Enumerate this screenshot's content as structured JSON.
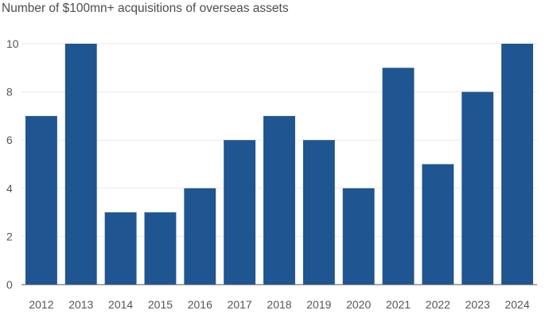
{
  "chart_data": {
    "type": "bar",
    "title": "Number of $100mn+ acquisitions of overseas assets",
    "xlabel": "",
    "ylabel": "",
    "categories": [
      "2012",
      "2013",
      "2014",
      "2015",
      "2016",
      "2017",
      "2018",
      "2019",
      "2020",
      "2021",
      "2022",
      "2023",
      "2024"
    ],
    "values": [
      7,
      10,
      3,
      3,
      4,
      6,
      7,
      6,
      4,
      9,
      5,
      8,
      10
    ],
    "ylim": [
      0,
      10
    ],
    "yticks": [
      0,
      2,
      4,
      6,
      8,
      10
    ],
    "grid": true,
    "bar_color": "#1f5590"
  }
}
